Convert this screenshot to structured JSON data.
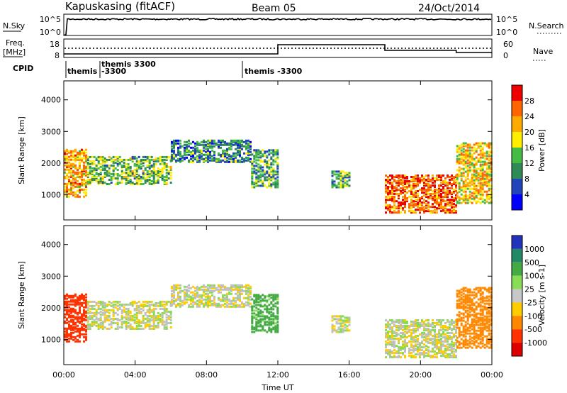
{
  "header": {
    "station": "Kapuskasing (fitACF)",
    "beam": "Beam 05",
    "date": "24/Oct/2014"
  },
  "strips": {
    "nsky": {
      "label": "N.Sky",
      "ticks": [
        "10^5",
        "10^0"
      ]
    },
    "nsearch": {
      "label": "N.Search",
      "ticks": [
        "10^5",
        "10^0"
      ]
    },
    "freq": {
      "label1": "Freq.",
      "label2": "[MHz]",
      "ticks": [
        "18",
        "8"
      ]
    },
    "nave": {
      "label": "Nave",
      "ticks": [
        "60",
        "0"
      ]
    },
    "cpid": {
      "label": "CPID",
      "entries": [
        "themis",
        "themis 3300",
        "-3300",
        "themis -3300"
      ]
    }
  },
  "colors": {
    "power": [
      "#0000ff",
      "#2244bb",
      "#2f8a58",
      "#44bb44",
      "#ffee00",
      "#ffaa00",
      "#ff6600",
      "#ee0000"
    ],
    "velocity": [
      "#2233bb",
      "#228866",
      "#44aa44",
      "#88dd55",
      "#c8c8c8",
      "#ffcc00",
      "#ff8800",
      "#ff3300",
      "#dd0000"
    ],
    "ground_scatter": "#c0c0c0"
  },
  "chart_data": [
    {
      "type": "heatmap",
      "name": "Power",
      "ylabel": "Slant Range [km]",
      "ylim": [
        200,
        4600
      ],
      "yticks": [
        "1000",
        "2000",
        "3000",
        "4000"
      ],
      "colorbar": {
        "label": "Power [dB]",
        "ticks": [
          "4",
          "8",
          "12",
          "16",
          "20",
          "24",
          "28"
        ],
        "range": [
          0,
          32
        ]
      },
      "scatter_regions": [
        {
          "t0": 0.0,
          "t1": 1.3,
          "r0": 900,
          "r1": 2400,
          "level": 22
        },
        {
          "t0": 1.3,
          "t1": 6.0,
          "r0": 1300,
          "r1": 2200,
          "level": 14
        },
        {
          "t0": 6.0,
          "t1": 10.5,
          "r0": 2000,
          "r1": 2700,
          "level": 10
        },
        {
          "t0": 10.5,
          "t1": 12.0,
          "r0": 1200,
          "r1": 2400,
          "level": 12
        },
        {
          "t0": 15.0,
          "t1": 16.0,
          "r0": 1200,
          "r1": 1700,
          "level": 12
        },
        {
          "t0": 18.0,
          "t1": 22.0,
          "r0": 400,
          "r1": 1600,
          "level": 26
        },
        {
          "t0": 22.0,
          "t1": 24.0,
          "r0": 700,
          "r1": 2600,
          "level": 20
        }
      ]
    },
    {
      "type": "heatmap",
      "name": "Velocity",
      "ylabel": "Slant Range [km]",
      "ylim": [
        200,
        4600
      ],
      "yticks": [
        "1000",
        "2000",
        "3000",
        "4000"
      ],
      "xlabel": "Time UT",
      "xticks": [
        "00:00",
        "04:00",
        "08:00",
        "12:00",
        "16:00",
        "20:00",
        "00:00"
      ],
      "colorbar": {
        "label": "Velocity [m s-1]",
        "ticks": [
          "1000",
          "500",
          "100",
          "25",
          "-25",
          "-100",
          "-500",
          "-1000"
        ]
      },
      "scatter_regions": [
        {
          "t0": 0.0,
          "t1": 1.3,
          "r0": 900,
          "r1": 2400,
          "level": -600
        },
        {
          "t0": 1.3,
          "t1": 6.0,
          "r0": 1300,
          "r1": 2200,
          "level": 0
        },
        {
          "t0": 6.0,
          "t1": 10.5,
          "r0": 2000,
          "r1": 2700,
          "level": 0
        },
        {
          "t0": 10.5,
          "t1": 12.0,
          "r0": 1200,
          "r1": 2400,
          "level": 150
        },
        {
          "t0": 15.0,
          "t1": 16.0,
          "r0": 1200,
          "r1": 1700,
          "level": 0
        },
        {
          "t0": 18.0,
          "t1": 22.0,
          "r0": 400,
          "r1": 1600,
          "level": 0
        },
        {
          "t0": 22.0,
          "t1": 24.0,
          "r0": 700,
          "r1": 2600,
          "level": -300
        }
      ]
    }
  ]
}
